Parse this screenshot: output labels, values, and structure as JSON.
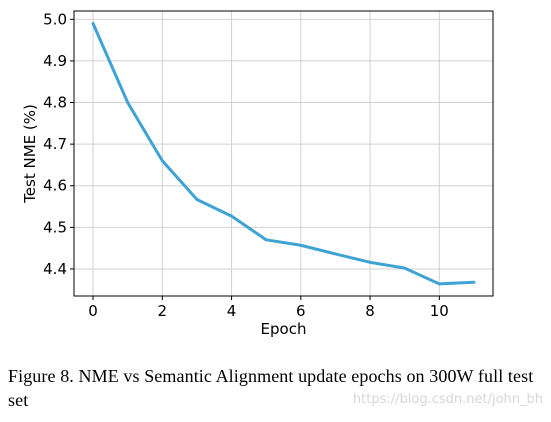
{
  "chart_data": {
    "type": "line",
    "title": "",
    "xlabel": "Epoch",
    "ylabel": "Test NME (%)",
    "x": [
      0,
      1,
      2,
      3,
      4,
      5,
      6,
      7,
      8,
      9,
      10,
      11
    ],
    "series": [
      {
        "values": [
          4.99,
          4.8,
          4.66,
          4.567,
          4.527,
          4.47,
          4.457,
          4.436,
          4.416,
          4.402,
          4.364,
          4.368
        ],
        "color": "#3ea3d4"
      }
    ],
    "xticks": [
      0,
      2,
      4,
      6,
      8,
      10
    ],
    "yticks": [
      4.4,
      4.5,
      4.6,
      4.7,
      4.8,
      4.9,
      5.0
    ],
    "ytick_labels": [
      "4.4",
      "4.5",
      "4.6",
      "4.7",
      "4.8",
      "4.9",
      "5.0"
    ],
    "xlim": [
      -0.55,
      11.55
    ],
    "ylim": [
      4.335,
      5.02
    ],
    "grid": true,
    "legend": "none"
  },
  "caption": {
    "text": "Figure 8. NME vs Semantic Alignment update epochs on 300W full test set"
  },
  "watermark": {
    "text": "https://blog.csdn.net/john_bh"
  }
}
